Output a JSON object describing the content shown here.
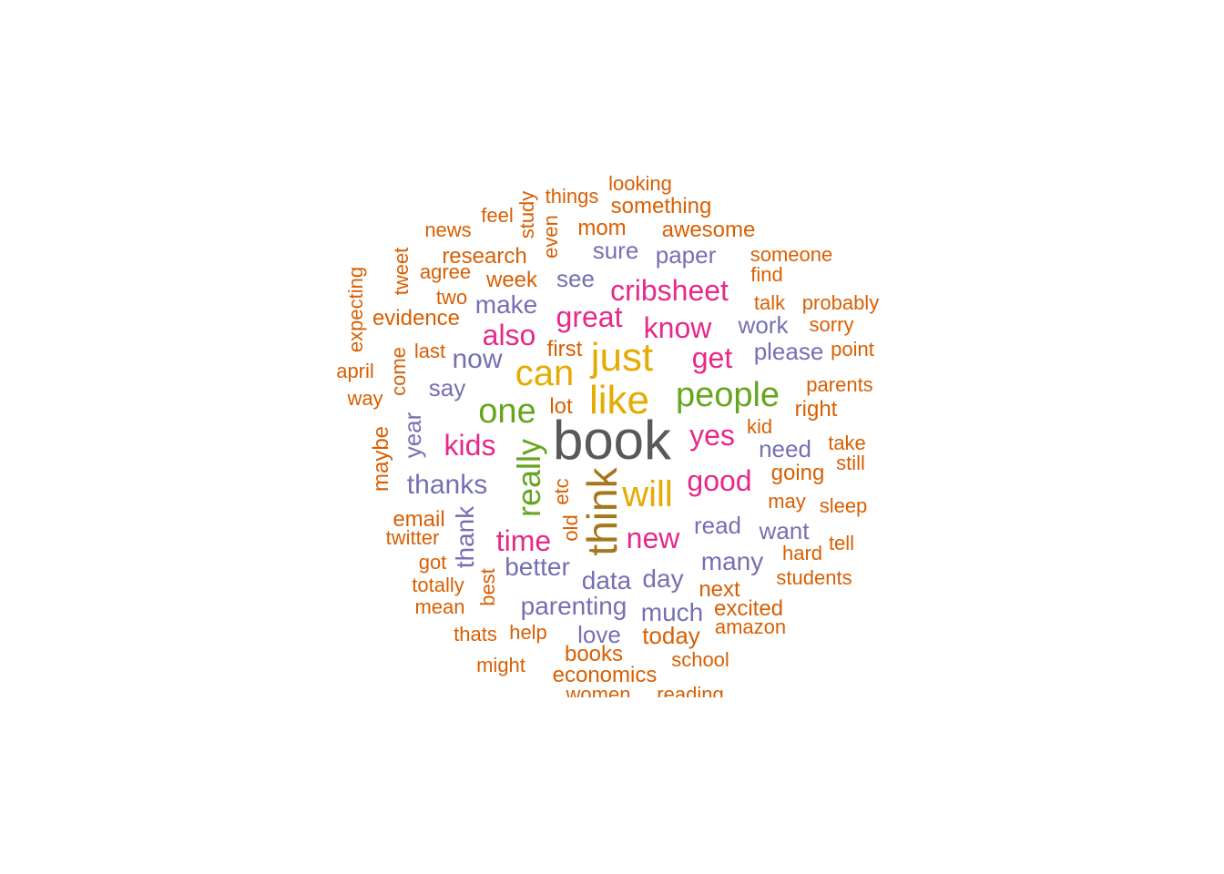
{
  "palette": {
    "c1": "#595959",
    "c2": "#A6761D",
    "c3": "#E6AB02",
    "c4": "#66A61E",
    "c5": "#E7298A",
    "c6": "#7570B3",
    "c7": "#D95F02"
  },
  "words": [
    {
      "text": "book",
      "color": "c1"
    },
    {
      "text": "think",
      "color": "c2"
    },
    {
      "text": "like",
      "color": "c3"
    },
    {
      "text": "just",
      "color": "c3"
    },
    {
      "text": "can",
      "color": "c3"
    },
    {
      "text": "will",
      "color": "c3"
    },
    {
      "text": "people",
      "color": "c4"
    },
    {
      "text": "one",
      "color": "c4"
    },
    {
      "text": "really",
      "color": "c4"
    },
    {
      "text": "cribsheet",
      "color": "c5"
    },
    {
      "text": "great",
      "color": "c5"
    },
    {
      "text": "know",
      "color": "c5"
    },
    {
      "text": "get",
      "color": "c5"
    },
    {
      "text": "also",
      "color": "c5"
    },
    {
      "text": "yes",
      "color": "c5"
    },
    {
      "text": "kids",
      "color": "c5"
    },
    {
      "text": "good",
      "color": "c5"
    },
    {
      "text": "new",
      "color": "c5"
    },
    {
      "text": "time",
      "color": "c5"
    },
    {
      "text": "now",
      "color": "c6"
    },
    {
      "text": "make",
      "color": "c6"
    },
    {
      "text": "see",
      "color": "c6"
    },
    {
      "text": "sure",
      "color": "c6"
    },
    {
      "text": "paper",
      "color": "c6"
    },
    {
      "text": "work",
      "color": "c6"
    },
    {
      "text": "please",
      "color": "c6"
    },
    {
      "text": "say",
      "color": "c6"
    },
    {
      "text": "year",
      "color": "c6"
    },
    {
      "text": "thanks",
      "color": "c6"
    },
    {
      "text": "need",
      "color": "c6"
    },
    {
      "text": "thank",
      "color": "c6"
    },
    {
      "text": "read",
      "color": "c6"
    },
    {
      "text": "want",
      "color": "c6"
    },
    {
      "text": "better",
      "color": "c6"
    },
    {
      "text": "many",
      "color": "c6"
    },
    {
      "text": "data",
      "color": "c6"
    },
    {
      "text": "day",
      "color": "c6"
    },
    {
      "text": "parenting",
      "color": "c6"
    },
    {
      "text": "much",
      "color": "c6"
    },
    {
      "text": "love",
      "color": "c6"
    },
    {
      "text": "looking",
      "color": "c7"
    },
    {
      "text": "things",
      "color": "c7"
    },
    {
      "text": "something",
      "color": "c7"
    },
    {
      "text": "study",
      "color": "c7"
    },
    {
      "text": "feel",
      "color": "c7"
    },
    {
      "text": "even",
      "color": "c7"
    },
    {
      "text": "mom",
      "color": "c7"
    },
    {
      "text": "awesome",
      "color": "c7"
    },
    {
      "text": "news",
      "color": "c7"
    },
    {
      "text": "research",
      "color": "c7"
    },
    {
      "text": "someone",
      "color": "c7"
    },
    {
      "text": "tweet",
      "color": "c7"
    },
    {
      "text": "agree",
      "color": "c7"
    },
    {
      "text": "week",
      "color": "c7"
    },
    {
      "text": "find",
      "color": "c7"
    },
    {
      "text": "expecting",
      "color": "c7"
    },
    {
      "text": "two",
      "color": "c7"
    },
    {
      "text": "talk",
      "color": "c7"
    },
    {
      "text": "probably",
      "color": "c7"
    },
    {
      "text": "evidence",
      "color": "c7"
    },
    {
      "text": "sorry",
      "color": "c7"
    },
    {
      "text": "last",
      "color": "c7"
    },
    {
      "text": "first",
      "color": "c7"
    },
    {
      "text": "point",
      "color": "c7"
    },
    {
      "text": "april",
      "color": "c7"
    },
    {
      "text": "come",
      "color": "c7"
    },
    {
      "text": "parents",
      "color": "c7"
    },
    {
      "text": "way",
      "color": "c7"
    },
    {
      "text": "lot",
      "color": "c7"
    },
    {
      "text": "right",
      "color": "c7"
    },
    {
      "text": "kid",
      "color": "c7"
    },
    {
      "text": "maybe",
      "color": "c7"
    },
    {
      "text": "take",
      "color": "c7"
    },
    {
      "text": "still",
      "color": "c7"
    },
    {
      "text": "going",
      "color": "c7"
    },
    {
      "text": "etc",
      "color": "c7"
    },
    {
      "text": "may",
      "color": "c7"
    },
    {
      "text": "sleep",
      "color": "c7"
    },
    {
      "text": "email",
      "color": "c7"
    },
    {
      "text": "old",
      "color": "c7"
    },
    {
      "text": "twitter",
      "color": "c7"
    },
    {
      "text": "hard",
      "color": "c7"
    },
    {
      "text": "tell",
      "color": "c7"
    },
    {
      "text": "got",
      "color": "c7"
    },
    {
      "text": "students",
      "color": "c7"
    },
    {
      "text": "totally",
      "color": "c7"
    },
    {
      "text": "best",
      "color": "c7"
    },
    {
      "text": "next",
      "color": "c7"
    },
    {
      "text": "mean",
      "color": "c7"
    },
    {
      "text": "excited",
      "color": "c7"
    },
    {
      "text": "amazon",
      "color": "c7"
    },
    {
      "text": "thats",
      "color": "c7"
    },
    {
      "text": "help",
      "color": "c7"
    },
    {
      "text": "today",
      "color": "c7"
    },
    {
      "text": "books",
      "color": "c7"
    },
    {
      "text": "school",
      "color": "c7"
    },
    {
      "text": "might",
      "color": "c7"
    },
    {
      "text": "economics",
      "color": "c7"
    },
    {
      "text": "women",
      "color": "c7"
    },
    {
      "text": "reading",
      "color": "c7"
    }
  ]
}
